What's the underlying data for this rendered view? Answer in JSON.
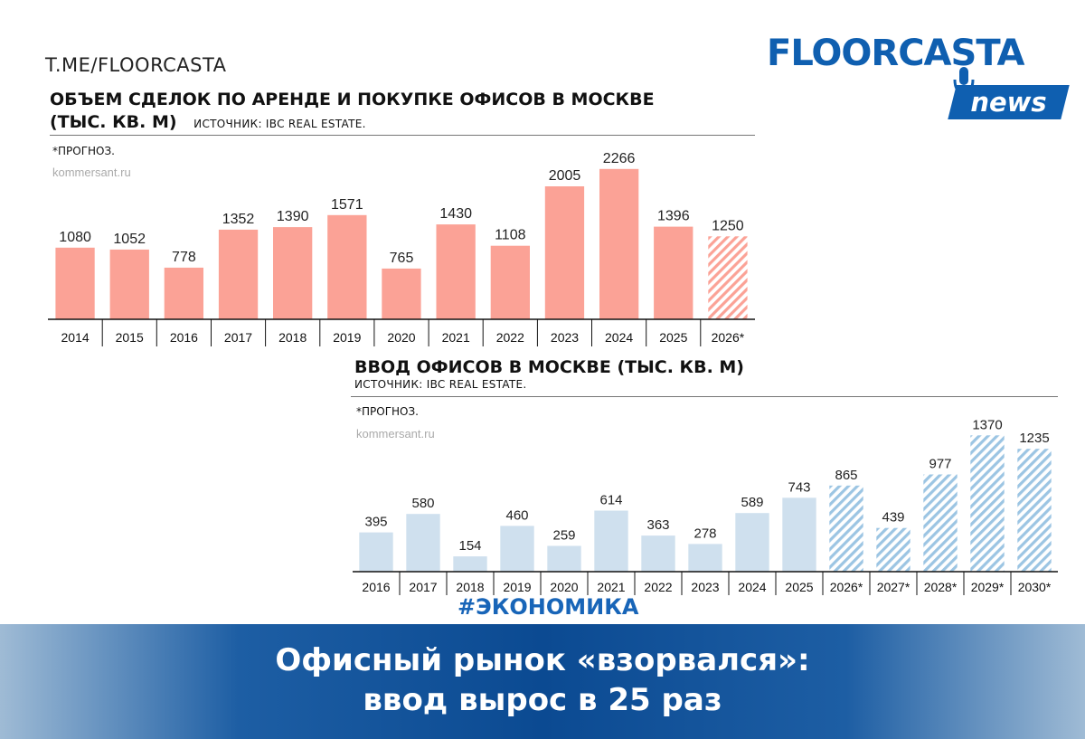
{
  "header": {
    "source_tag": "T.ME/FLOORCASTA",
    "logo_text": "FLOORCASTA",
    "logo_badge": "news"
  },
  "colors": {
    "deals_bar": "#fba296",
    "completions_bar": "#cfe0ee",
    "completions_hatch": "#9cc5e3",
    "brand_blue": "#0f5fb0"
  },
  "chart_data": [
    {
      "type": "bar",
      "title": "ОБЪЕМ СДЕЛОК ПО АРЕНДЕ И ПОКУПКЕ ОФИСОВ В МОСКВЕ",
      "title_line2": "(ТЫС. КВ. М)",
      "source": "ИСТОЧНИК: IBC REAL ESTATE.",
      "note": "*ПРОГНОЗ.",
      "site": "kommersant.ru",
      "categories": [
        "2014",
        "2015",
        "2016",
        "2017",
        "2018",
        "2019",
        "2020",
        "2021",
        "2022",
        "2023",
        "2024",
        "2025",
        "2026*"
      ],
      "values": [
        1080,
        1052,
        778,
        1352,
        1390,
        1571,
        765,
        1430,
        1108,
        2005,
        2266,
        1396,
        1250
      ],
      "forecast": [
        false,
        false,
        false,
        false,
        false,
        false,
        false,
        false,
        false,
        false,
        false,
        false,
        true
      ],
      "ylim": [
        0,
        2400
      ],
      "grid": false
    },
    {
      "type": "bar",
      "title": "ВВОД ОФИСОВ В МОСКВЕ (ТЫС. КВ. М)",
      "source": "ИСТОЧНИК: IBC REAL ESTATE.",
      "note": "*ПРОГНОЗ.",
      "site": "kommersant.ru",
      "categories": [
        "2016",
        "2017",
        "2018",
        "2019",
        "2020",
        "2021",
        "2022",
        "2023",
        "2024",
        "2025",
        "2026*",
        "2027*",
        "2028*",
        "2029*",
        "2030*"
      ],
      "values": [
        395,
        580,
        154,
        460,
        259,
        614,
        363,
        278,
        589,
        743,
        865,
        439,
        977,
        1370,
        1235
      ],
      "forecast": [
        false,
        false,
        false,
        false,
        false,
        false,
        false,
        false,
        false,
        false,
        true,
        true,
        true,
        true,
        true
      ],
      "ylim": [
        0,
        1500
      ],
      "grid": false
    }
  ],
  "footer": {
    "hashtag": "#ЭКОНОМИКА",
    "headline_line1": "Офисный рынок «взорвался»:",
    "headline_line2": "ввод вырос в 25 раз"
  }
}
